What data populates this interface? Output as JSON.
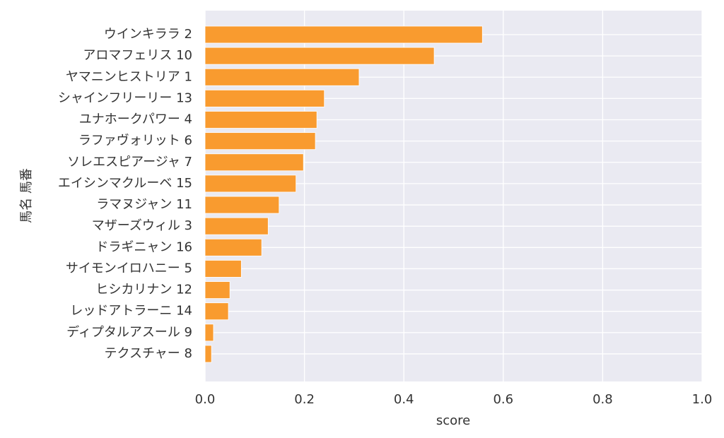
{
  "chart_data": {
    "type": "barh",
    "xlabel": "score",
    "ylabel": "馬名 馬番",
    "categories": [
      "ウインキララ 2",
      "アロマフェリス 10",
      "ヤマニンヒストリア 1",
      "シャインフリーリー 13",
      "ユナホークパワー 4",
      "ラファヴォリット 6",
      "ソレエスピアージャ 7",
      "エイシンマクルーベ 15",
      "ラマヌジャン 11",
      "マザーズウィル 3",
      "ドラギニャン 16",
      "サイモンイロハニー 5",
      "ヒシカリナン 12",
      "レッドアトラーニ 14",
      "ディプタルアスール 9",
      "テクスチャー 8"
    ],
    "values": [
      0.558,
      0.461,
      0.31,
      0.24,
      0.225,
      0.222,
      0.198,
      0.183,
      0.149,
      0.127,
      0.114,
      0.073,
      0.05,
      0.047,
      0.017,
      0.013
    ],
    "color": "#f99b2f",
    "xlim": [
      0,
      1.0
    ],
    "xticks": [
      {
        "value": 0,
        "label": "0.0"
      },
      {
        "value": 0.2,
        "label": "0.2"
      },
      {
        "value": 0.4,
        "label": "0.4"
      },
      {
        "value": 0.6,
        "label": "0.6"
      },
      {
        "value": 0.8,
        "label": "0.8"
      },
      {
        "value": 1.0,
        "label": "1.0"
      }
    ],
    "grid": true
  }
}
